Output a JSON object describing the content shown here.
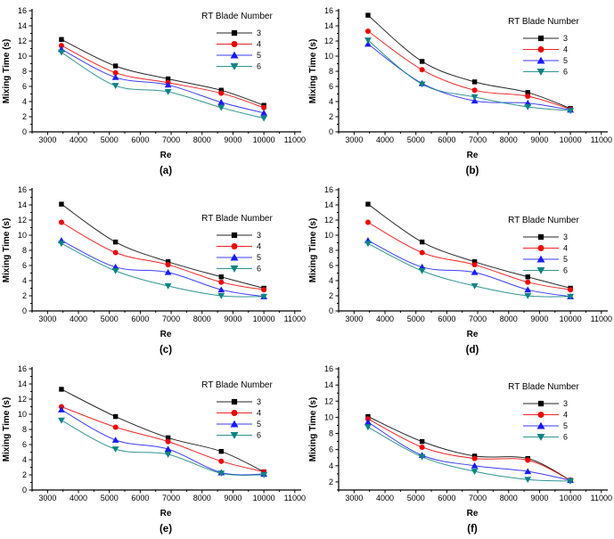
{
  "figure": {
    "background": "#ffffff",
    "description_labels": {
      "xlabel": "Re",
      "ylabel": "Mixing Time (s)",
      "legend_title": "RT Blade Number"
    }
  },
  "chart_data": [
    {
      "panel": "(a)",
      "type": "line",
      "title": "",
      "xlabel": "Re",
      "ylabel": "Mixing Time (s)",
      "x": [
        3450,
        5200,
        6900,
        8620,
        10000
      ],
      "xlim": [
        2500,
        11150
      ],
      "x_ticks": [
        3000,
        4000,
        5000,
        6000,
        7000,
        8000,
        9000,
        10000,
        11000
      ],
      "x_minor_step": 500,
      "ylim": [
        0,
        16
      ],
      "y_ticks": [
        0,
        2,
        4,
        6,
        8,
        10,
        12,
        14,
        16
      ],
      "y_minor_step": 1,
      "grid": false,
      "legend": {
        "title": "RT Blade Number",
        "position": "upper-right",
        "y": 21
      },
      "series": [
        {
          "name": "3",
          "marker": "square",
          "color": "#000000",
          "values": [
            12.2,
            8.7,
            7.0,
            5.5,
            3.5
          ]
        },
        {
          "name": "4",
          "marker": "circle",
          "color": "#f40000",
          "values": [
            11.4,
            7.8,
            6.5,
            5.1,
            3.2
          ]
        },
        {
          "name": "5",
          "marker": "triangle-up",
          "color": "#1a1aff",
          "values": [
            10.9,
            7.2,
            6.2,
            3.9,
            2.5
          ]
        },
        {
          "name": "6",
          "marker": "triangle-down",
          "color": "#0d8484",
          "values": [
            10.5,
            6.1,
            5.3,
            3.2,
            1.8
          ]
        }
      ]
    },
    {
      "panel": "(b)",
      "type": "line",
      "title": "",
      "xlabel": "Re",
      "ylabel": "Mixing Time (s)",
      "x": [
        3450,
        5200,
        6900,
        8620,
        10000
      ],
      "xlim": [
        2500,
        11150
      ],
      "x_ticks": [
        3000,
        4000,
        5000,
        6000,
        7000,
        8000,
        9000,
        10000,
        11000
      ],
      "x_minor_step": 500,
      "ylim": [
        0,
        16
      ],
      "y_ticks": [
        0,
        2,
        4,
        6,
        8,
        10,
        12,
        14,
        16
      ],
      "y_minor_step": 1,
      "grid": false,
      "legend": {
        "title": "RT Blade Number",
        "position": "upper-right",
        "y": 27
      },
      "series": [
        {
          "name": "3",
          "marker": "square",
          "color": "#000000",
          "values": [
            15.4,
            9.3,
            6.6,
            5.2,
            3.1
          ]
        },
        {
          "name": "4",
          "marker": "circle",
          "color": "#f40000",
          "values": [
            13.3,
            8.2,
            5.5,
            4.7,
            3.0
          ]
        },
        {
          "name": "5",
          "marker": "triangle-up",
          "color": "#1a1aff",
          "values": [
            11.6,
            6.4,
            4.1,
            3.8,
            2.9
          ]
        },
        {
          "name": "6",
          "marker": "triangle-down",
          "color": "#0d8484",
          "values": [
            12.1,
            6.3,
            4.6,
            3.3,
            2.8
          ]
        }
      ]
    },
    {
      "panel": "(c)",
      "type": "line",
      "title": "",
      "xlabel": "Re",
      "ylabel": "Mixing Time (s)",
      "x": [
        3450,
        5200,
        6900,
        8620,
        10000
      ],
      "xlim": [
        2500,
        11150
      ],
      "x_ticks": [
        3000,
        4000,
        5000,
        6000,
        7000,
        8000,
        9000,
        10000,
        11000
      ],
      "x_minor_step": 500,
      "ylim": [
        0,
        16
      ],
      "y_ticks": [
        0,
        2,
        4,
        6,
        8,
        10,
        12,
        14,
        16
      ],
      "y_minor_step": 1,
      "grid": false,
      "legend": {
        "title": "RT Blade Number",
        "position": "upper-right",
        "y": 47
      },
      "series": [
        {
          "name": "3",
          "marker": "square",
          "color": "#000000",
          "values": [
            14.1,
            9.1,
            6.5,
            4.5,
            3.0
          ]
        },
        {
          "name": "4",
          "marker": "circle",
          "color": "#f40000",
          "values": [
            11.7,
            7.7,
            6.1,
            3.8,
            2.8
          ]
        },
        {
          "name": "5",
          "marker": "triangle-up",
          "color": "#1a1aff",
          "values": [
            9.3,
            5.8,
            5.1,
            2.8,
            1.9
          ]
        },
        {
          "name": "6",
          "marker": "triangle-down",
          "color": "#0d8484",
          "values": [
            8.9,
            5.3,
            3.3,
            2.0,
            1.9
          ]
        }
      ]
    },
    {
      "panel": "(d)",
      "type": "line",
      "title": "",
      "xlabel": "Re",
      "ylabel": "Mixing Time (s)",
      "x": [
        3450,
        5200,
        6900,
        8620,
        10000
      ],
      "xlim": [
        2500,
        11150
      ],
      "x_ticks": [
        3000,
        4000,
        5000,
        6000,
        7000,
        8000,
        9000,
        10000,
        11000
      ],
      "x_minor_step": 500,
      "ylim": [
        0,
        16
      ],
      "y_ticks": [
        0,
        2,
        4,
        6,
        8,
        10,
        12,
        14,
        16
      ],
      "y_minor_step": 1,
      "grid": false,
      "legend": {
        "title": "RT Blade Number",
        "position": "upper-right",
        "y": 49
      },
      "series": [
        {
          "name": "3",
          "marker": "square",
          "color": "#000000",
          "values": [
            14.1,
            9.1,
            6.5,
            4.5,
            3.0
          ]
        },
        {
          "name": "4",
          "marker": "circle",
          "color": "#f40000",
          "values": [
            11.7,
            7.7,
            6.1,
            3.8,
            2.8
          ]
        },
        {
          "name": "5",
          "marker": "triangle-up",
          "color": "#1a1aff",
          "values": [
            9.3,
            5.8,
            5.1,
            2.8,
            1.9
          ]
        },
        {
          "name": "6",
          "marker": "triangle-down",
          "color": "#0d8484",
          "values": [
            8.9,
            5.3,
            3.3,
            2.0,
            1.9
          ]
        }
      ]
    },
    {
      "panel": "(e)",
      "type": "line",
      "title": "",
      "xlabel": "Re",
      "ylabel": "Mixing Time (s)",
      "x": [
        3450,
        5200,
        6900,
        8620,
        10000
      ],
      "xlim": [
        2500,
        11150
      ],
      "x_ticks": [
        3000,
        4000,
        5000,
        6000,
        7000,
        8000,
        9000,
        10000,
        11000
      ],
      "x_minor_step": 500,
      "ylim": [
        0,
        16
      ],
      "y_ticks": [
        0,
        2,
        4,
        6,
        8,
        10,
        12,
        14,
        16
      ],
      "y_minor_step": 1,
      "grid": false,
      "legend": {
        "title": "RT Blade Number",
        "position": "upper-right",
        "y": 33
      },
      "series": [
        {
          "name": "3",
          "marker": "square",
          "color": "#000000",
          "values": [
            13.3,
            9.7,
            6.9,
            5.1,
            2.4
          ]
        },
        {
          "name": "4",
          "marker": "circle",
          "color": "#f40000",
          "values": [
            11.0,
            8.3,
            6.4,
            3.8,
            2.4
          ]
        },
        {
          "name": "5",
          "marker": "triangle-up",
          "color": "#1a1aff",
          "values": [
            10.6,
            6.6,
            5.4,
            2.3,
            2.1
          ]
        },
        {
          "name": "6",
          "marker": "triangle-down",
          "color": "#0d8484",
          "values": [
            9.2,
            5.4,
            4.7,
            2.2,
            2.0
          ]
        }
      ]
    },
    {
      "panel": "(f)",
      "type": "line",
      "title": "",
      "xlabel": "Re",
      "ylabel": "Mixing Time (s)",
      "x": [
        3450,
        5200,
        6900,
        8620,
        10000
      ],
      "xlim": [
        2500,
        11150
      ],
      "x_ticks": [
        3000,
        4000,
        5000,
        6000,
        7000,
        8000,
        9000,
        10000,
        11000
      ],
      "x_minor_step": 500,
      "ylim": [
        1,
        16
      ],
      "y_ticks": [
        2,
        4,
        6,
        8,
        10,
        12,
        14,
        16
      ],
      "y_minor_step": 1,
      "grid": false,
      "legend": {
        "title": "RT Blade Number",
        "position": "upper-right",
        "y": 35
      },
      "series": [
        {
          "name": "3",
          "marker": "square",
          "color": "#000000",
          "values": [
            10.1,
            7.0,
            5.2,
            4.9,
            2.2
          ]
        },
        {
          "name": "4",
          "marker": "circle",
          "color": "#f40000",
          "values": [
            9.8,
            6.3,
            4.9,
            4.7,
            2.2
          ]
        },
        {
          "name": "5",
          "marker": "triangle-up",
          "color": "#1a1aff",
          "values": [
            9.4,
            5.3,
            4.0,
            3.3,
            2.2
          ]
        },
        {
          "name": "6",
          "marker": "triangle-down",
          "color": "#0d8484",
          "values": [
            8.8,
            5.1,
            3.3,
            2.3,
            2.1
          ]
        }
      ]
    }
  ]
}
